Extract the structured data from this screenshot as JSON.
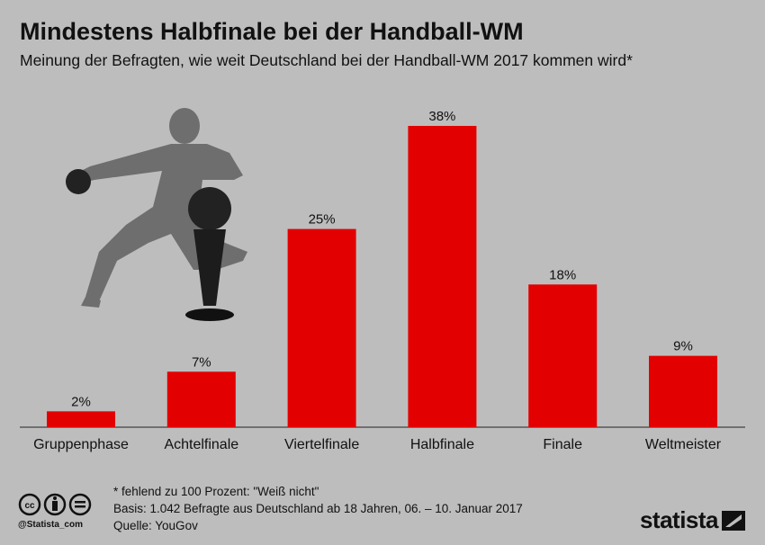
{
  "chart_data": {
    "type": "bar",
    "title": "Mindestens Halbfinale bei der Handball-WM",
    "subtitle": "Meinung der Befragten, wie weit Deutschland bei der Handball-WM 2017 kommen wird*",
    "categories": [
      "Gruppenphase",
      "Achtelfinale",
      "Viertelfinale",
      "Halbfinale",
      "Finale",
      "Weltmeister"
    ],
    "values": [
      2,
      7,
      25,
      38,
      18,
      9
    ],
    "value_labels": [
      "2%",
      "7%",
      "25%",
      "38%",
      "18%",
      "9%"
    ],
    "unit": "%",
    "ylim": [
      0,
      40
    ],
    "grid": false,
    "bar_color": "#e30000"
  },
  "footer": {
    "note": "* fehlend zu 100 Prozent: \"Weiß nicht\"",
    "basis": "Basis: 1.042 Befragte aus Deutschland ab 18 Jahren, 06. – 10. Januar 2017",
    "source": "Quelle: YouGov",
    "handle": "@Statista_com",
    "logo": "statista"
  },
  "colors": {
    "background": "#bdbdbd",
    "bar": "#e30000"
  }
}
